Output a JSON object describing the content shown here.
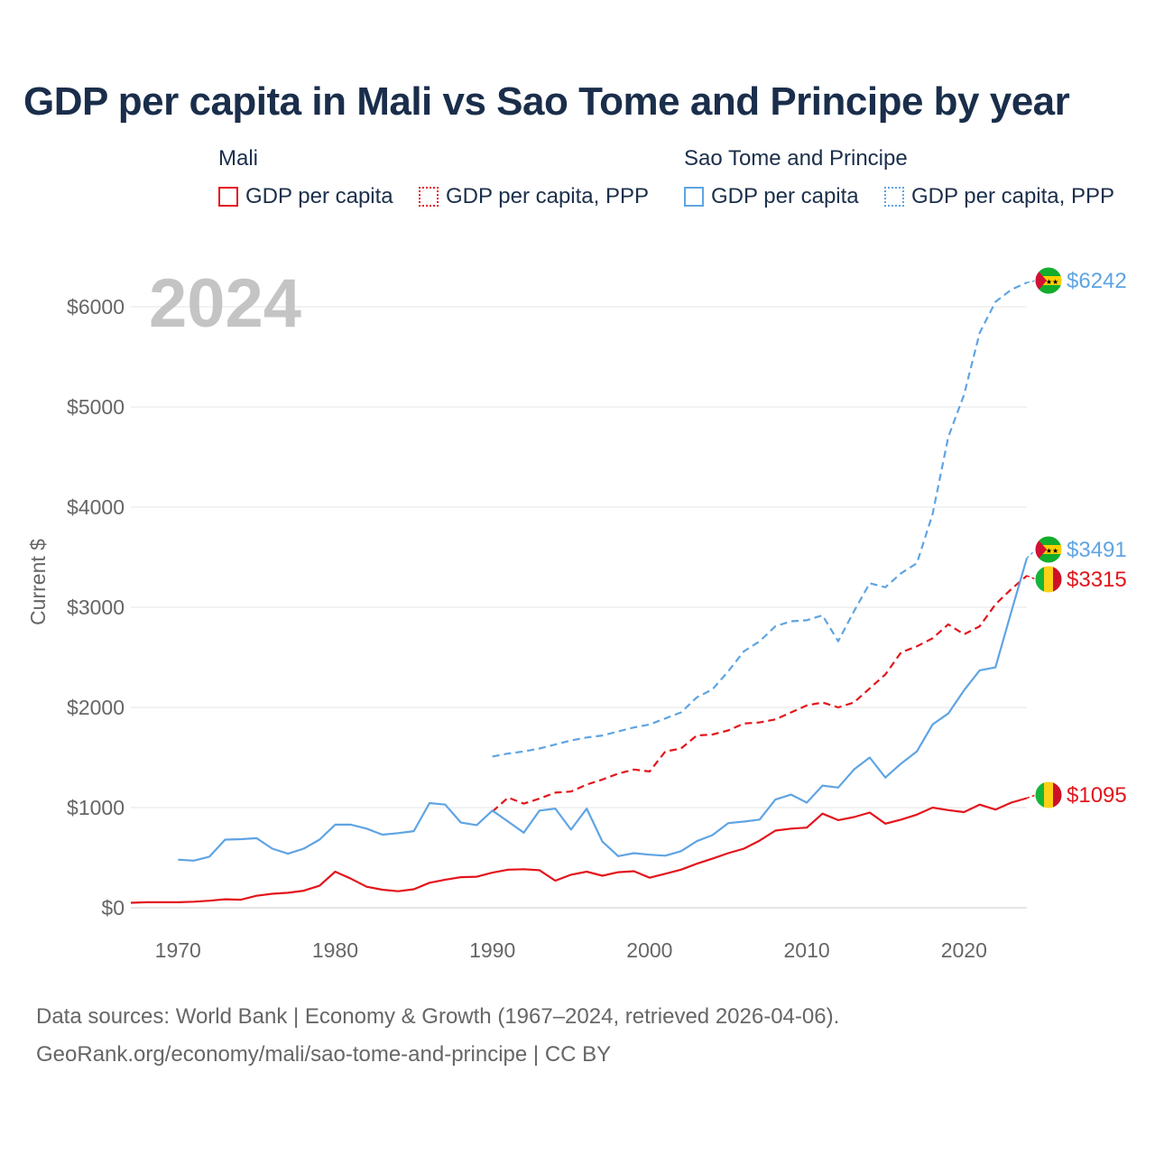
{
  "title": "GDP per capita in Mali vs Sao Tome and Principe by year",
  "legend": {
    "groups": [
      {
        "name": "Mali",
        "items": [
          "GDP per capita",
          "GDP per capita, PPP"
        ],
        "color": "#e3141b"
      },
      {
        "name": "Sao Tome and Principe",
        "items": [
          "GDP per capita",
          "GDP per capita, PPP"
        ],
        "color": "#5fa4e3"
      }
    ]
  },
  "year_watermark": "2024",
  "end_labels": {
    "stp_ppp": "$6242",
    "stp_gdp": "$3491",
    "mali_ppp": "$3315",
    "mali_gdp": "$1095"
  },
  "colors": {
    "mali": "#e3141b",
    "stp": "#5fa4e3",
    "title": "#1a2e4b",
    "axis_text": "#666666",
    "grid": "#e6e6e6"
  },
  "source": {
    "line1": "Data sources: World Bank | Economy & Growth (1967–2024, retrieved 2026-04-06).",
    "line2": "GeoRank.org/economy/mali/sao-tome-and-principe | CC BY"
  },
  "chart_data": {
    "type": "line",
    "title": "GDP per capita in Mali vs Sao Tome and Principe by year",
    "xlabel": "",
    "ylabel": "Current $",
    "xlim": [
      1967,
      2024
    ],
    "ylim": [
      0,
      6000
    ],
    "x_ticks": [
      1970,
      1980,
      1990,
      2000,
      2010,
      2020
    ],
    "y_ticks": [
      0,
      1000,
      2000,
      3000,
      4000,
      5000,
      6000
    ],
    "y_tick_labels": [
      "$0",
      "$1000",
      "$2000",
      "$3000",
      "$4000",
      "$5000",
      "$6000"
    ],
    "series": [
      {
        "name": "Mali — GDP per capita",
        "key": "mali_gdp",
        "color": "#e3141b",
        "style": "solid",
        "x": [
          1967,
          1968,
          1969,
          1970,
          1971,
          1972,
          1973,
          1974,
          1975,
          1976,
          1977,
          1978,
          1979,
          1980,
          1981,
          1982,
          1983,
          1984,
          1985,
          1986,
          1987,
          1988,
          1989,
          1990,
          1991,
          1992,
          1993,
          1994,
          1995,
          1996,
          1997,
          1998,
          1999,
          2000,
          2001,
          2002,
          2003,
          2004,
          2005,
          2006,
          2007,
          2008,
          2009,
          2010,
          2011,
          2012,
          2013,
          2014,
          2015,
          2016,
          2017,
          2018,
          2019,
          2020,
          2021,
          2022,
          2023,
          2024
        ],
        "values": [
          50,
          55,
          55,
          55,
          60,
          70,
          85,
          80,
          120,
          140,
          150,
          170,
          220,
          360,
          290,
          210,
          180,
          165,
          185,
          250,
          280,
          305,
          310,
          350,
          380,
          385,
          375,
          270,
          330,
          360,
          320,
          355,
          365,
          300,
          340,
          380,
          440,
          490,
          545,
          590,
          670,
          770,
          790,
          800,
          940,
          875,
          905,
          950,
          840,
          880,
          930,
          1000,
          975,
          955,
          1030,
          980,
          1050,
          1095
        ]
      },
      {
        "name": "Mali — GDP per capita, PPP",
        "key": "mali_ppp",
        "color": "#e3141b",
        "style": "dashed",
        "x": [
          1990,
          1991,
          1992,
          1993,
          1994,
          1995,
          1996,
          1997,
          1998,
          1999,
          2000,
          2001,
          2002,
          2003,
          2004,
          2005,
          2006,
          2007,
          2008,
          2009,
          2010,
          2011,
          2012,
          2013,
          2014,
          2015,
          2016,
          2017,
          2018,
          2019,
          2020,
          2021,
          2022,
          2023,
          2024
        ],
        "values": [
          960,
          1100,
          1040,
          1090,
          1150,
          1160,
          1230,
          1280,
          1340,
          1380,
          1360,
          1560,
          1590,
          1720,
          1730,
          1770,
          1840,
          1850,
          1880,
          1950,
          2020,
          2050,
          2000,
          2050,
          2190,
          2330,
          2550,
          2610,
          2690,
          2830,
          2730,
          2810,
          3030,
          3180,
          3315
        ]
      },
      {
        "name": "Sao Tome and Principe — GDP per capita",
        "key": "stp_gdp",
        "color": "#5fa4e3",
        "style": "solid",
        "x": [
          1970,
          1971,
          1972,
          1973,
          1974,
          1975,
          1976,
          1977,
          1978,
          1979,
          1980,
          1981,
          1982,
          1983,
          1984,
          1985,
          1986,
          1987,
          1988,
          1989,
          1990,
          1991,
          1992,
          1993,
          1994,
          1995,
          1996,
          1997,
          1998,
          1999,
          2000,
          2001,
          2002,
          2003,
          2004,
          2005,
          2006,
          2007,
          2008,
          2009,
          2010,
          2011,
          2012,
          2013,
          2014,
          2015,
          2016,
          2017,
          2018,
          2019,
          2020,
          2021,
          2022,
          2023,
          2024
        ],
        "values": [
          480,
          470,
          510,
          680,
          685,
          695,
          590,
          540,
          590,
          680,
          830,
          830,
          790,
          730,
          745,
          765,
          1045,
          1030,
          850,
          825,
          970,
          860,
          750,
          970,
          990,
          780,
          990,
          660,
          515,
          545,
          530,
          520,
          565,
          665,
          725,
          845,
          860,
          880,
          1080,
          1130,
          1050,
          1220,
          1200,
          1380,
          1500,
          1300,
          1440,
          1560,
          1830,
          1940,
          2170,
          2370,
          2400,
          2950,
          3491
        ]
      },
      {
        "name": "Sao Tome and Principe — GDP per capita, PPP",
        "key": "stp_ppp",
        "color": "#5fa4e3",
        "style": "dotted",
        "x": [
          1990,
          1991,
          1992,
          1993,
          1994,
          1995,
          1996,
          1997,
          1998,
          1999,
          2000,
          2001,
          2002,
          2003,
          2004,
          2005,
          2006,
          2007,
          2008,
          2009,
          2010,
          2011,
          2012,
          2013,
          2014,
          2015,
          2016,
          2017,
          2018,
          2019,
          2020,
          2021,
          2022,
          2023,
          2024
        ],
        "values": [
          1510,
          1540,
          1560,
          1590,
          1630,
          1670,
          1700,
          1720,
          1760,
          1800,
          1830,
          1890,
          1950,
          2100,
          2180,
          2360,
          2560,
          2660,
          2810,
          2860,
          2870,
          2920,
          2660,
          2960,
          3240,
          3200,
          3340,
          3440,
          3930,
          4700,
          5120,
          5740,
          6050,
          6170,
          6242
        ]
      }
    ]
  }
}
